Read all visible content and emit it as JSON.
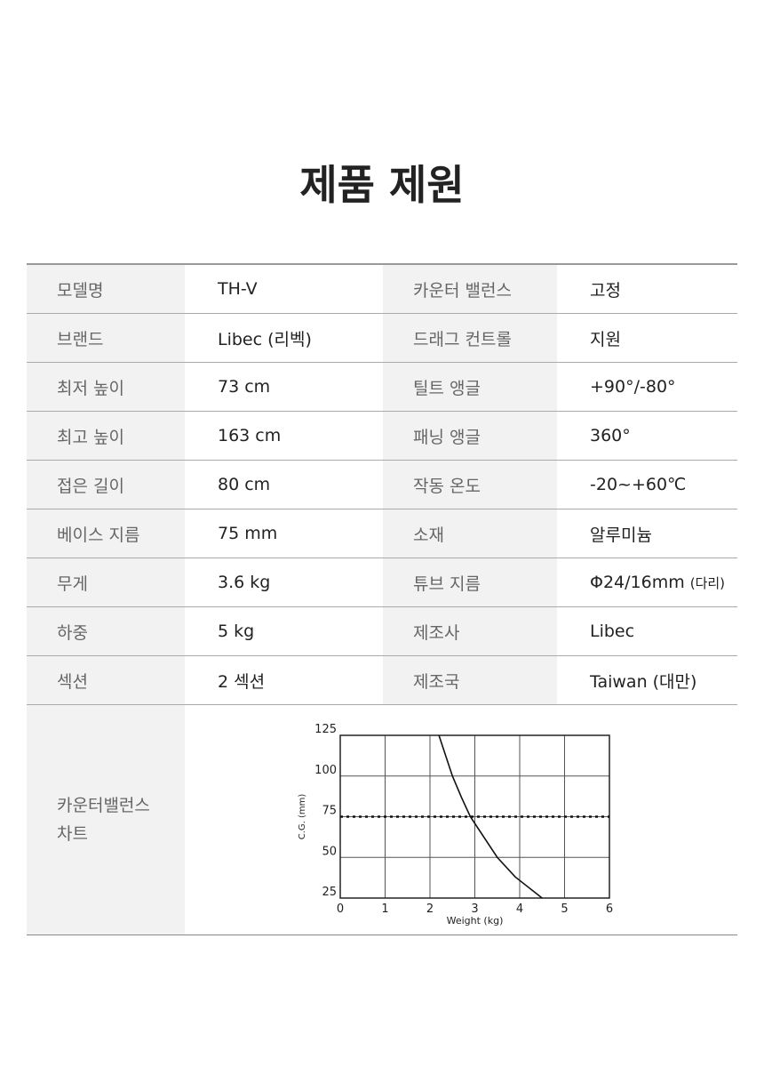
{
  "header": {
    "title": "제품 제원"
  },
  "table": {
    "rows": [
      [
        "모델명",
        "TH-V",
        "카운터 밸런스",
        "고정"
      ],
      [
        "브랜드",
        "Libec (리벡)",
        "드래그 컨트롤",
        "지원"
      ],
      [
        "최저 높이",
        "73 cm",
        "틸트 앵글",
        "+90°/-80°"
      ],
      [
        "최고 높이",
        "163 cm",
        "패닝 앵글",
        "360°"
      ],
      [
        "접은 길이",
        "80 cm",
        "작동 온도",
        "-20~+60℃"
      ],
      [
        "베이스 지름",
        "75 mm",
        "소재",
        "알루미늄"
      ],
      [
        "무게",
        "3.6 kg",
        "튜브 지름",
        {
          "text": "Φ24/16mm",
          "note": "(다리)"
        }
      ],
      [
        "하중",
        "5 kg",
        "제조사",
        "Libec"
      ],
      [
        "섹션",
        "2 섹션",
        "제조국",
        "Taiwan (대만)"
      ]
    ],
    "chart_row": {
      "label": "카운터밸런스\n차트",
      "chart_data": {
        "type": "line",
        "x_label": "Weight (kg)",
        "y_label": "C.G. (mm)",
        "x": [
          2.2,
          2.5,
          2.7,
          2.9,
          3.5,
          3.9,
          4.5
        ],
        "series": [
          {
            "color": "#111111",
            "values": [
              125,
              100,
              87,
              75,
              50,
              38,
              25
            ]
          }
        ],
        "reference_y": 75,
        "xlim": [
          0,
          6
        ],
        "xticks": [
          0,
          1,
          2,
          3,
          4,
          5,
          6
        ],
        "ylim": [
          25,
          125
        ],
        "yticks": [
          25,
          50,
          75,
          100,
          125
        ],
        "grid": true
      }
    }
  }
}
